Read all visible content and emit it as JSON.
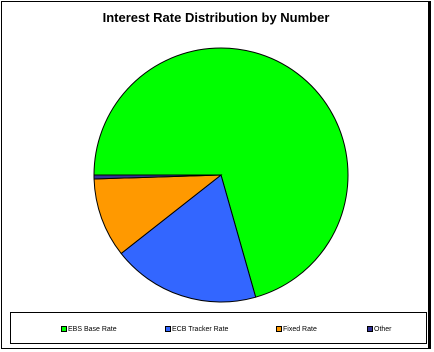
{
  "chart_data": {
    "type": "pie",
    "title": "Interest Rate Distribution by Number",
    "slices": [
      {
        "name": "EBS Base Rate",
        "value": 70.6,
        "color": "#00ff00"
      },
      {
        "name": "ECB Tracker Rate",
        "value": 18.8,
        "color": "#3366ff"
      },
      {
        "name": "Fixed Rate",
        "value": 10.1,
        "color": "#ff9900"
      },
      {
        "name": "Other",
        "value": 0.5,
        "color": "#333399"
      }
    ],
    "legend_position": "bottom",
    "start_angle_deg": 180,
    "direction": "counterclockwise"
  }
}
